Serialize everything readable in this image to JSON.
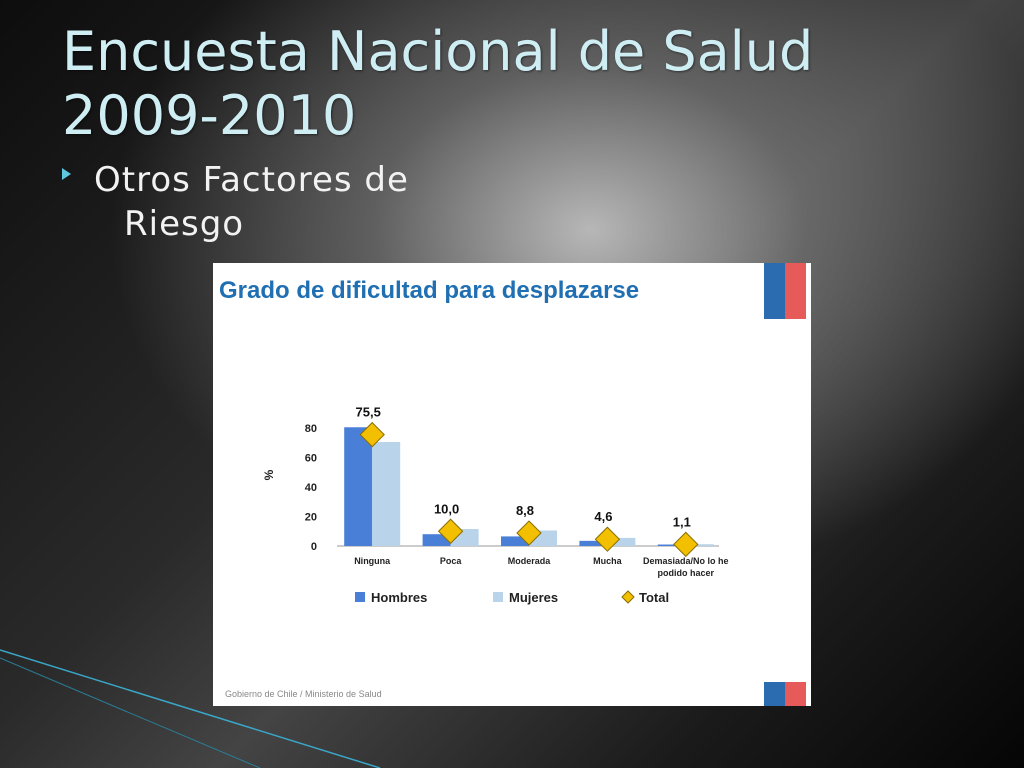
{
  "slide": {
    "title": "Encuesta Nacional de Salud 2009-2010",
    "subtitle_line1": "Otros Factores de",
    "subtitle_line2": "Riesgo"
  },
  "colors": {
    "title": "#cfeef4",
    "hombres": "#4a7fd8",
    "mujeres": "#b9d3ea",
    "total": "#f2c000",
    "chart_title": "#1f6fb2"
  },
  "chart_data": {
    "type": "bar",
    "title": "Grado de dificultad para desplazarse",
    "ylabel": "%",
    "xlabel": "",
    "ylim": [
      0,
      80
    ],
    "yticks": [
      0,
      20,
      40,
      60,
      80
    ],
    "categories": [
      "Ninguna",
      "Poca",
      "Moderada",
      "Mucha",
      "Demasiada/No lo he podido hacer"
    ],
    "series": [
      {
        "name": "Hombres",
        "values": [
          80.5,
          8.0,
          6.5,
          3.5,
          1.0
        ]
      },
      {
        "name": "Mujeres",
        "values": [
          70.5,
          11.5,
          10.5,
          5.5,
          1.2
        ]
      },
      {
        "name": "Total",
        "values": [
          75.5,
          10.0,
          8.8,
          4.6,
          1.1
        ]
      }
    ],
    "data_labels": [
      "75,5",
      "10,0",
      "8,8",
      "4,6",
      "1,1"
    ],
    "legend": [
      "Hombres",
      "Mujeres",
      "Total"
    ],
    "legend_position": "bottom",
    "grid": false
  },
  "footer": "Gobierno de Chile / Ministerio de Salud"
}
